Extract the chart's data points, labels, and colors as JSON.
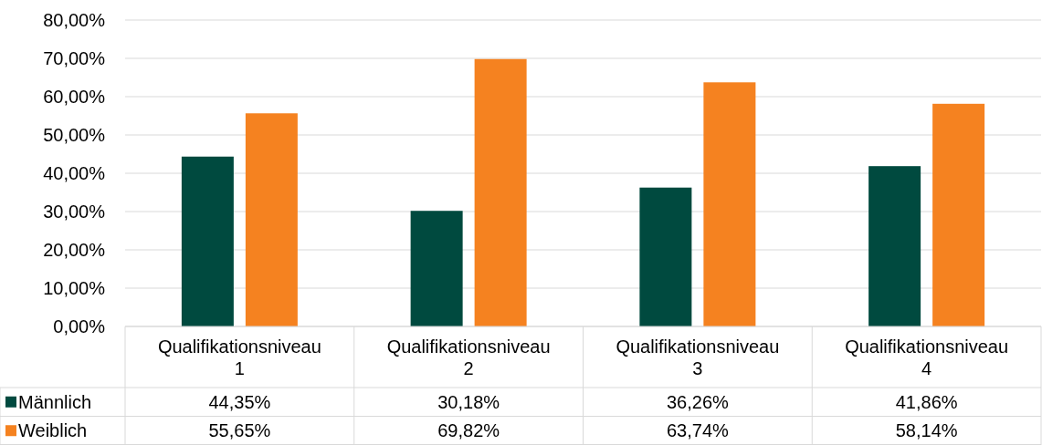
{
  "chart_data": {
    "type": "bar",
    "categories": [
      "Qualifikationsniveau 1",
      "Qualifikationsniveau 2",
      "Qualifikationsniveau 3",
      "Qualifikationsniveau 4"
    ],
    "series": [
      {
        "name": "Männlich",
        "color": "#004a3f",
        "values": [
          44.35,
          30.18,
          36.26,
          41.86
        ],
        "value_labels": [
          "44,35%",
          "30,18%",
          "36,26%",
          "41,86%"
        ]
      },
      {
        "name": "Weiblich",
        "color": "#f58220",
        "values": [
          55.65,
          69.82,
          63.74,
          58.14
        ],
        "value_labels": [
          "55,65%",
          "69,82%",
          "63,74%",
          "58,14%"
        ]
      }
    ],
    "ylim": [
      0,
      80
    ],
    "yticks": [
      {
        "value": 0,
        "label": "0,00%"
      },
      {
        "value": 10,
        "label": "10,00%"
      },
      {
        "value": 20,
        "label": "20,00%"
      },
      {
        "value": 30,
        "label": "30,00%"
      },
      {
        "value": 40,
        "label": "40,00%"
      },
      {
        "value": 50,
        "label": "50,00%"
      },
      {
        "value": 60,
        "label": "60,00%"
      },
      {
        "value": 70,
        "label": "70,00%"
      },
      {
        "value": 80,
        "label": "80,00%"
      }
    ],
    "grid": "y",
    "legend": "bottom"
  }
}
